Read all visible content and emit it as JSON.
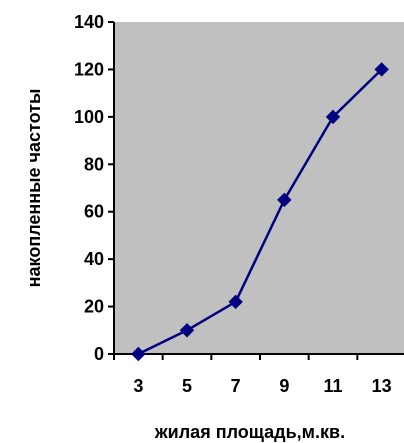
{
  "chart_data": {
    "type": "line",
    "title": "",
    "xlabel": "жилая площадь,м.кв.",
    "ylabel": "накопленные частоты",
    "x": [
      3,
      5,
      7,
      9,
      11,
      13
    ],
    "series": [
      {
        "values": [
          0,
          10,
          22,
          65,
          100,
          120
        ]
      }
    ],
    "x_ticks": [
      "3",
      "5",
      "7",
      "9",
      "11",
      "13"
    ],
    "y_ticks": [
      "0",
      "20",
      "40",
      "60",
      "80",
      "100",
      "120",
      "140"
    ],
    "ylim": [
      0,
      140
    ],
    "grid": false,
    "legend": "none",
    "colors": {
      "plot_background": "#c0c0c0",
      "line": "#000080",
      "marker": "#000080",
      "axis": "#000000"
    },
    "marker": "diamond"
  }
}
